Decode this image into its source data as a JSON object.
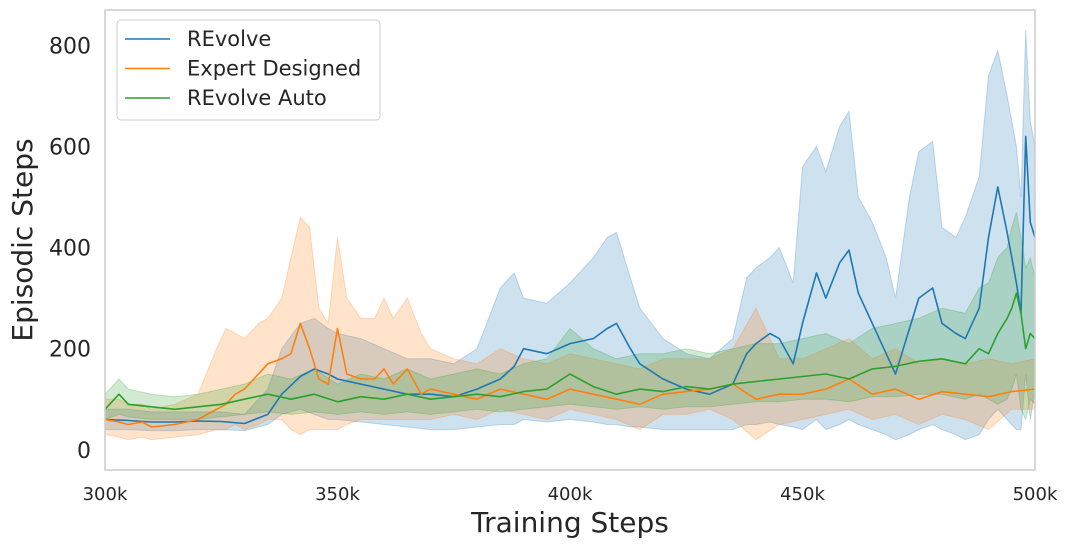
{
  "chart_data": {
    "type": "line",
    "xlabel": "Training Steps",
    "ylabel": "Episodic Steps",
    "xlim": [
      300000,
      500000
    ],
    "ylim": [
      -40,
      870
    ],
    "x_ticks": [
      {
        "value": 300000,
        "label": "300k"
      },
      {
        "value": 350000,
        "label": "350k"
      },
      {
        "value": 400000,
        "label": "400k"
      },
      {
        "value": 450000,
        "label": "450k"
      },
      {
        "value": 500000,
        "label": "500k"
      }
    ],
    "y_ticks": [
      {
        "value": 0,
        "label": "0"
      },
      {
        "value": 200,
        "label": "200"
      },
      {
        "value": 400,
        "label": "400"
      },
      {
        "value": 600,
        "label": "600"
      },
      {
        "value": 800,
        "label": "800"
      }
    ],
    "grid": false,
    "legend_position": "top-left",
    "series": [
      {
        "name": "REvolve",
        "color": "#1f77b4",
        "x": [
          300000,
          305000,
          310000,
          315000,
          320000,
          325000,
          330000,
          335000,
          338000,
          342000,
          345000,
          348000,
          350000,
          355000,
          360000,
          365000,
          370000,
          375000,
          380000,
          385000,
          388000,
          390000,
          395000,
          400000,
          405000,
          408000,
          410000,
          413000,
          415000,
          420000,
          425000,
          430000,
          435000,
          438000,
          440000,
          443000,
          445000,
          448000,
          450000,
          453000,
          455000,
          458000,
          460000,
          462000,
          465000,
          468000,
          470000,
          473000,
          475000,
          478000,
          480000,
          483000,
          485000,
          488000,
          490000,
          492000,
          494000,
          495000,
          496000,
          497000,
          498000,
          499000,
          500000
        ],
        "values": [
          60,
          58,
          55,
          55,
          57,
          56,
          52,
          70,
          110,
          145,
          160,
          150,
          140,
          130,
          120,
          110,
          110,
          105,
          120,
          140,
          165,
          200,
          190,
          210,
          220,
          240,
          250,
          200,
          170,
          140,
          120,
          110,
          130,
          190,
          210,
          230,
          220,
          170,
          250,
          350,
          300,
          370,
          395,
          310,
          250,
          190,
          150,
          240,
          300,
          320,
          250,
          230,
          220,
          280,
          420,
          520,
          430,
          380,
          330,
          270,
          620,
          450,
          420
        ],
        "lower": [
          40,
          40,
          38,
          38,
          40,
          40,
          38,
          50,
          70,
          80,
          70,
          60,
          60,
          55,
          50,
          45,
          40,
          40,
          45,
          50,
          50,
          60,
          55,
          60,
          55,
          50,
          50,
          45,
          45,
          40,
          40,
          40,
          40,
          50,
          50,
          55,
          50,
          45,
          40,
          60,
          40,
          50,
          60,
          50,
          40,
          30,
          20,
          30,
          40,
          50,
          40,
          30,
          20,
          30,
          60,
          80,
          60,
          50,
          40,
          40,
          150,
          60,
          120
        ],
        "upper": [
          80,
          80,
          75,
          75,
          75,
          75,
          70,
          120,
          200,
          250,
          260,
          240,
          230,
          220,
          200,
          180,
          180,
          170,
          200,
          320,
          350,
          300,
          290,
          330,
          380,
          420,
          430,
          340,
          280,
          220,
          190,
          180,
          220,
          340,
          360,
          380,
          400,
          330,
          560,
          600,
          550,
          640,
          670,
          500,
          450,
          380,
          300,
          500,
          590,
          610,
          440,
          420,
          460,
          540,
          740,
          790,
          700,
          650,
          600,
          500,
          830,
          650,
          600
        ]
      },
      {
        "name": "Expert Designed",
        "color": "#ff7f0e",
        "x": [
          300000,
          303000,
          305000,
          308000,
          310000,
          315000,
          320000,
          324000,
          326000,
          328000,
          330000,
          333000,
          335000,
          338000,
          340000,
          342000,
          344000,
          346000,
          348000,
          350000,
          352000,
          355000,
          358000,
          360000,
          362000,
          365000,
          368000,
          370000,
          375000,
          380000,
          385000,
          390000,
          395000,
          400000,
          405000,
          410000,
          415000,
          420000,
          425000,
          430000,
          435000,
          440000,
          445000,
          450000,
          455000,
          460000,
          465000,
          470000,
          475000,
          480000,
          485000,
          490000,
          495000,
          500000
        ],
        "values": [
          60,
          55,
          50,
          55,
          45,
          50,
          60,
          80,
          90,
          110,
          120,
          150,
          170,
          180,
          190,
          250,
          200,
          140,
          130,
          240,
          150,
          140,
          140,
          160,
          130,
          160,
          110,
          120,
          110,
          100,
          120,
          110,
          100,
          120,
          110,
          100,
          90,
          110,
          115,
          120,
          130,
          100,
          110,
          110,
          120,
          140,
          110,
          120,
          100,
          115,
          110,
          105,
          115,
          120
        ],
        "lower": [
          30,
          25,
          20,
          25,
          20,
          25,
          30,
          40,
          40,
          50,
          40,
          50,
          60,
          60,
          40,
          30,
          40,
          40,
          40,
          40,
          50,
          60,
          60,
          60,
          60,
          60,
          60,
          60,
          70,
          60,
          80,
          70,
          60,
          80,
          70,
          60,
          40,
          70,
          70,
          80,
          60,
          20,
          50,
          60,
          70,
          80,
          60,
          70,
          50,
          70,
          60,
          40,
          80,
          80
        ],
        "upper": [
          100,
          100,
          90,
          90,
          80,
          90,
          110,
          200,
          240,
          230,
          220,
          250,
          260,
          300,
          380,
          460,
          440,
          280,
          250,
          420,
          300,
          260,
          260,
          300,
          260,
          300,
          230,
          200,
          180,
          170,
          200,
          180,
          170,
          190,
          180,
          170,
          160,
          180,
          180,
          180,
          200,
          280,
          180,
          180,
          200,
          220,
          180,
          200,
          170,
          180,
          170,
          180,
          170,
          180
        ]
      },
      {
        "name": "REvolve Auto",
        "color": "#2ca02c",
        "x": [
          300000,
          303000,
          305000,
          310000,
          315000,
          320000,
          325000,
          330000,
          335000,
          340000,
          345000,
          350000,
          355000,
          360000,
          365000,
          370000,
          375000,
          380000,
          385000,
          390000,
          395000,
          400000,
          405000,
          410000,
          415000,
          420000,
          425000,
          430000,
          435000,
          440000,
          445000,
          450000,
          455000,
          460000,
          465000,
          470000,
          475000,
          480000,
          485000,
          488000,
          490000,
          492000,
          494000,
          495000,
          496000,
          497000,
          498000,
          499000,
          500000
        ],
        "values": [
          80,
          110,
          90,
          85,
          80,
          85,
          90,
          100,
          110,
          100,
          110,
          95,
          105,
          100,
          110,
          100,
          105,
          110,
          105,
          115,
          120,
          150,
          125,
          110,
          120,
          115,
          125,
          120,
          130,
          135,
          140,
          145,
          150,
          140,
          160,
          165,
          175,
          180,
          170,
          200,
          190,
          230,
          260,
          280,
          310,
          270,
          200,
          230,
          220
        ],
        "lower": [
          60,
          70,
          65,
          60,
          60,
          60,
          65,
          70,
          75,
          70,
          75,
          70,
          75,
          70,
          75,
          70,
          75,
          80,
          75,
          80,
          85,
          90,
          85,
          80,
          85,
          80,
          85,
          85,
          90,
          95,
          95,
          100,
          100,
          95,
          105,
          105,
          110,
          110,
          100,
          110,
          100,
          90,
          100,
          120,
          150,
          80,
          60,
          100,
          90
        ],
        "upper": [
          110,
          140,
          120,
          110,
          105,
          110,
          120,
          130,
          150,
          140,
          160,
          130,
          150,
          140,
          160,
          140,
          150,
          160,
          150,
          170,
          180,
          240,
          200,
          180,
          190,
          190,
          200,
          190,
          200,
          210,
          210,
          220,
          230,
          210,
          240,
          250,
          260,
          280,
          270,
          320,
          330,
          380,
          400,
          440,
          470,
          420,
          360,
          380,
          340
        ]
      }
    ]
  }
}
